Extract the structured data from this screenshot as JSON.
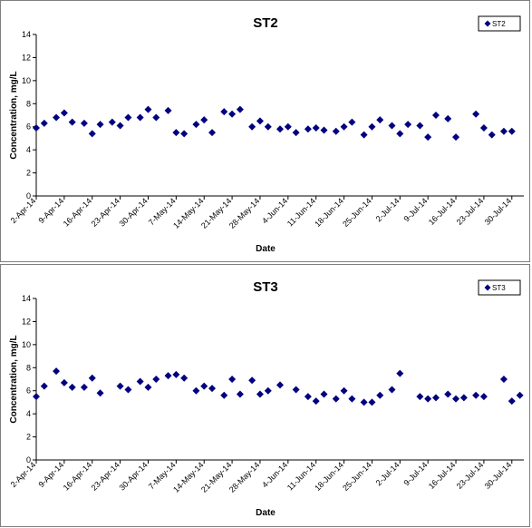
{
  "chart_data": [
    {
      "type": "scatter",
      "title": "ST2",
      "xlabel": "Date",
      "ylabel": "Concentration, mg/L",
      "ylim": [
        0,
        14
      ],
      "yticks": [
        "0",
        "2",
        "4",
        "6",
        "8",
        "10",
        "12",
        "14"
      ],
      "xtick_labels": [
        "2-Apr-14",
        "9-Apr-14",
        "16-Apr-14",
        "23-Apr-14",
        "30-Apr-14",
        "7-May-14",
        "14-May-14",
        "21-May-14",
        "28-May-14",
        "4-Jun-14",
        "11-Jun-14",
        "18-Jun-14",
        "25-Jun-14",
        "2-Jul-14",
        "9-Jul-14",
        "16-Jul-14",
        "23-Jul-14",
        "30-Jul-14"
      ],
      "xlim": [
        "2014-04-02",
        "2014-08-02"
      ],
      "grid": false,
      "legend_position": "top-right",
      "marker_color": "#000080",
      "series": [
        {
          "name": "ST2",
          "points": [
            [
              "2014-04-02",
              5.9
            ],
            [
              "2014-04-04",
              6.3
            ],
            [
              "2014-04-07",
              6.8
            ],
            [
              "2014-04-09",
              7.2
            ],
            [
              "2014-04-11",
              6.4
            ],
            [
              "2014-04-14",
              6.3
            ],
            [
              "2014-04-16",
              5.4
            ],
            [
              "2014-04-18",
              6.2
            ],
            [
              "2014-04-21",
              6.4
            ],
            [
              "2014-04-23",
              6.1
            ],
            [
              "2014-04-25",
              6.8
            ],
            [
              "2014-04-28",
              6.8
            ],
            [
              "2014-04-30",
              7.5
            ],
            [
              "2014-05-02",
              6.8
            ],
            [
              "2014-05-05",
              7.4
            ],
            [
              "2014-05-07",
              5.5
            ],
            [
              "2014-05-09",
              5.4
            ],
            [
              "2014-05-12",
              6.2
            ],
            [
              "2014-05-14",
              6.6
            ],
            [
              "2014-05-16",
              5.5
            ],
            [
              "2014-05-19",
              7.3
            ],
            [
              "2014-05-21",
              7.1
            ],
            [
              "2014-05-23",
              7.5
            ],
            [
              "2014-05-26",
              6.0
            ],
            [
              "2014-05-28",
              6.5
            ],
            [
              "2014-05-30",
              6.0
            ],
            [
              "2014-06-02",
              5.8
            ],
            [
              "2014-06-04",
              6.0
            ],
            [
              "2014-06-06",
              5.5
            ],
            [
              "2014-06-09",
              5.8
            ],
            [
              "2014-06-11",
              5.9
            ],
            [
              "2014-06-13",
              5.7
            ],
            [
              "2014-06-16",
              5.6
            ],
            [
              "2014-06-18",
              6.0
            ],
            [
              "2014-06-20",
              6.4
            ],
            [
              "2014-06-23",
              5.3
            ],
            [
              "2014-06-25",
              6.0
            ],
            [
              "2014-06-27",
              6.6
            ],
            [
              "2014-06-30",
              6.1
            ],
            [
              "2014-07-02",
              5.4
            ],
            [
              "2014-07-04",
              6.2
            ],
            [
              "2014-07-07",
              6.1
            ],
            [
              "2014-07-09",
              5.1
            ],
            [
              "2014-07-11",
              7.0
            ],
            [
              "2014-07-14",
              6.7
            ],
            [
              "2014-07-16",
              5.1
            ],
            [
              "2014-07-21",
              7.1
            ],
            [
              "2014-07-23",
              5.9
            ],
            [
              "2014-07-25",
              5.3
            ],
            [
              "2014-07-28",
              5.6
            ],
            [
              "2014-07-30",
              5.6
            ]
          ]
        }
      ]
    },
    {
      "type": "scatter",
      "title": "ST3",
      "xlabel": "Date",
      "ylabel": "Concentration, mg/L",
      "ylim": [
        0,
        14
      ],
      "yticks": [
        "0",
        "2",
        "4",
        "6",
        "8",
        "10",
        "12",
        "14"
      ],
      "xtick_labels": [
        "2-Apr-14",
        "9-Apr-14",
        "16-Apr-14",
        "23-Apr-14",
        "30-Apr-14",
        "7-May-14",
        "14-May-14",
        "21-May-14",
        "28-May-14",
        "4-Jun-14",
        "11-Jun-14",
        "18-Jun-14",
        "25-Jun-14",
        "2-Jul-14",
        "9-Jul-14",
        "16-Jul-14",
        "23-Jul-14",
        "30-Jul-14"
      ],
      "xlim": [
        "2014-04-02",
        "2014-08-02"
      ],
      "grid": false,
      "legend_position": "top-right",
      "marker_color": "#000080",
      "series": [
        {
          "name": "ST3",
          "points": [
            [
              "2014-04-02",
              5.5
            ],
            [
              "2014-04-04",
              6.4
            ],
            [
              "2014-04-07",
              7.7
            ],
            [
              "2014-04-09",
              6.7
            ],
            [
              "2014-04-11",
              6.3
            ],
            [
              "2014-04-14",
              6.3
            ],
            [
              "2014-04-16",
              7.1
            ],
            [
              "2014-04-18",
              5.8
            ],
            [
              "2014-04-23",
              6.4
            ],
            [
              "2014-04-25",
              6.1
            ],
            [
              "2014-04-28",
              6.8
            ],
            [
              "2014-04-30",
              6.3
            ],
            [
              "2014-05-02",
              7.0
            ],
            [
              "2014-05-05",
              7.3
            ],
            [
              "2014-05-07",
              7.4
            ],
            [
              "2014-05-09",
              7.1
            ],
            [
              "2014-05-12",
              6.0
            ],
            [
              "2014-05-14",
              6.4
            ],
            [
              "2014-05-16",
              6.2
            ],
            [
              "2014-05-19",
              5.6
            ],
            [
              "2014-05-21",
              7.0
            ],
            [
              "2014-05-23",
              5.7
            ],
            [
              "2014-05-26",
              6.9
            ],
            [
              "2014-05-28",
              5.7
            ],
            [
              "2014-05-30",
              6.0
            ],
            [
              "2014-06-02",
              6.5
            ],
            [
              "2014-06-06",
              6.1
            ],
            [
              "2014-06-09",
              5.5
            ],
            [
              "2014-06-11",
              5.1
            ],
            [
              "2014-06-13",
              5.7
            ],
            [
              "2014-06-16",
              5.3
            ],
            [
              "2014-06-18",
              6.0
            ],
            [
              "2014-06-20",
              5.3
            ],
            [
              "2014-06-23",
              5.0
            ],
            [
              "2014-06-25",
              5.0
            ],
            [
              "2014-06-27",
              5.6
            ],
            [
              "2014-06-30",
              6.1
            ],
            [
              "2014-07-02",
              7.5
            ],
            [
              "2014-07-07",
              5.5
            ],
            [
              "2014-07-09",
              5.3
            ],
            [
              "2014-07-11",
              5.4
            ],
            [
              "2014-07-14",
              5.7
            ],
            [
              "2014-07-16",
              5.3
            ],
            [
              "2014-07-18",
              5.4
            ],
            [
              "2014-07-21",
              5.6
            ],
            [
              "2014-07-23",
              5.5
            ],
            [
              "2014-07-28",
              7.0
            ],
            [
              "2014-07-30",
              5.1
            ],
            [
              "2014-08-01",
              5.6
            ]
          ]
        }
      ]
    }
  ]
}
